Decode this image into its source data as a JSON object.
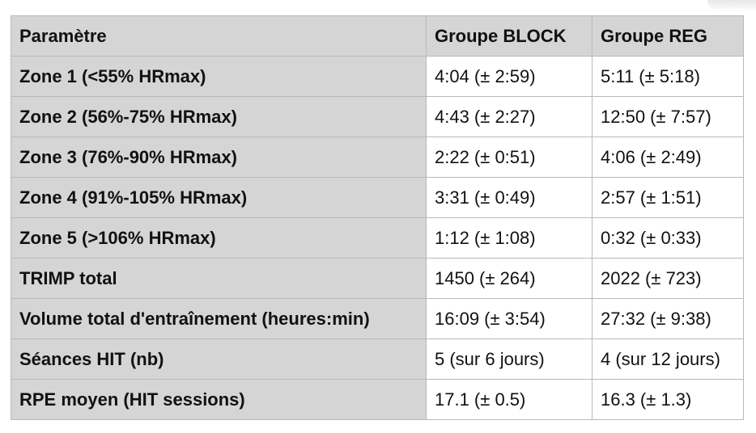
{
  "table": {
    "headers": [
      "Paramètre",
      "Groupe BLOCK",
      "Groupe REG"
    ],
    "rows": [
      {
        "param": "Zone 1 (<55% HRmax)",
        "block": "4:04 (± 2:59)",
        "reg": "5:11 (± 5:18)"
      },
      {
        "param": "Zone 2 (56%-75% HRmax)",
        "block": "4:43 (± 2:27)",
        "reg": "12:50 (± 7:57)"
      },
      {
        "param": "Zone 3 (76%-90% HRmax)",
        "block": "2:22 (± 0:51)",
        "reg": "4:06 (± 2:49)"
      },
      {
        "param": "Zone 4 (91%-105% HRmax)",
        "block": "3:31 (± 0:49)",
        "reg": "2:57 (± 1:51)"
      },
      {
        "param": "Zone 5 (>106% HRmax)",
        "block": "1:12 (± 1:08)",
        "reg": "0:32 (± 0:33)"
      },
      {
        "param": "TRIMP total",
        "block": "1450 (± 264)",
        "reg": "2022 (± 723)"
      },
      {
        "param": "Volume total d'entraînement (heures:min)",
        "block": "16:09 (± 3:54)",
        "reg": "27:32 (± 9:38)"
      },
      {
        "param": "Séances HIT (nb)",
        "block": "5 (sur 6 jours)",
        "reg": "4 (sur 12 jours)"
      },
      {
        "param": "RPE moyen (HIT sessions)",
        "block": "17.1 (± 0.5)",
        "reg": "16.3 (± 1.3)"
      }
    ]
  },
  "colors": {
    "header_bg": "#d5d5d5",
    "label_bg": "#d5d5d5",
    "value_bg": "#ffffff",
    "border": "#b9b9b9",
    "text": "#111111"
  }
}
